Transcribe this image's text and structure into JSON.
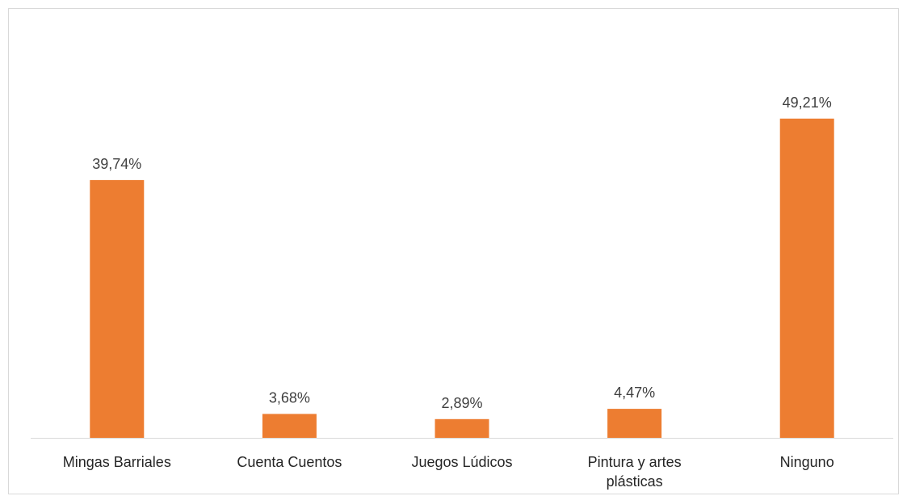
{
  "chart_data": {
    "type": "bar",
    "categories": [
      "Mingas Barriales",
      "Cuenta Cuentos",
      "Juegos Lúdicos",
      "Pintura y artes plásticas",
      "Ninguno"
    ],
    "category_lines": [
      [
        "Mingas Barriales"
      ],
      [
        "Cuenta Cuentos"
      ],
      [
        "Juegos Lúdicos"
      ],
      [
        "Pintura y artes",
        "plásticas"
      ],
      [
        "Ninguno"
      ]
    ],
    "values": [
      39.74,
      3.68,
      2.89,
      4.47,
      49.21
    ],
    "data_labels": [
      "39,74%",
      "3,68%",
      "2,89%",
      "4,47%",
      "49,21%"
    ],
    "title": "",
    "xlabel": "",
    "ylabel": "",
    "ylim": [
      0,
      60
    ],
    "grid": false,
    "legend": "none",
    "bar_color": "#ED7D31",
    "axis_color": "#d9d9d9"
  }
}
